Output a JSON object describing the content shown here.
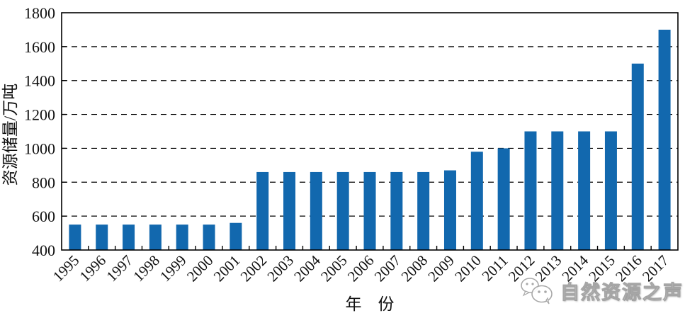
{
  "chart_data": {
    "type": "bar",
    "title": "",
    "xlabel": "年　份",
    "ylabel": "资源储量/万吨",
    "categories": [
      "1995",
      "1996",
      "1997",
      "1998",
      "1999",
      "2000",
      "2001",
      "2002",
      "2003",
      "2004",
      "2005",
      "2006",
      "2007",
      "2008",
      "2009",
      "2010",
      "2011",
      "2012",
      "2013",
      "2014",
      "2015",
      "2016",
      "2017"
    ],
    "values": [
      550,
      550,
      550,
      550,
      550,
      550,
      560,
      860,
      860,
      860,
      860,
      860,
      860,
      860,
      870,
      980,
      1000,
      1100,
      1100,
      1100,
      1100,
      1500,
      1700
    ],
    "ylim": [
      400,
      1800
    ],
    "yticks": [
      400,
      600,
      800,
      1000,
      1200,
      1400,
      1600,
      1800
    ],
    "gridlines": [
      600,
      800,
      1000,
      1200,
      1400,
      1600
    ],
    "grid_style": "dashed",
    "legend": null,
    "bar_color": "#1268ae",
    "axis_color": "#000000",
    "grid_color": "#000000"
  },
  "watermark": {
    "text": "自然资源之声",
    "icon": "wechat-logo"
  }
}
